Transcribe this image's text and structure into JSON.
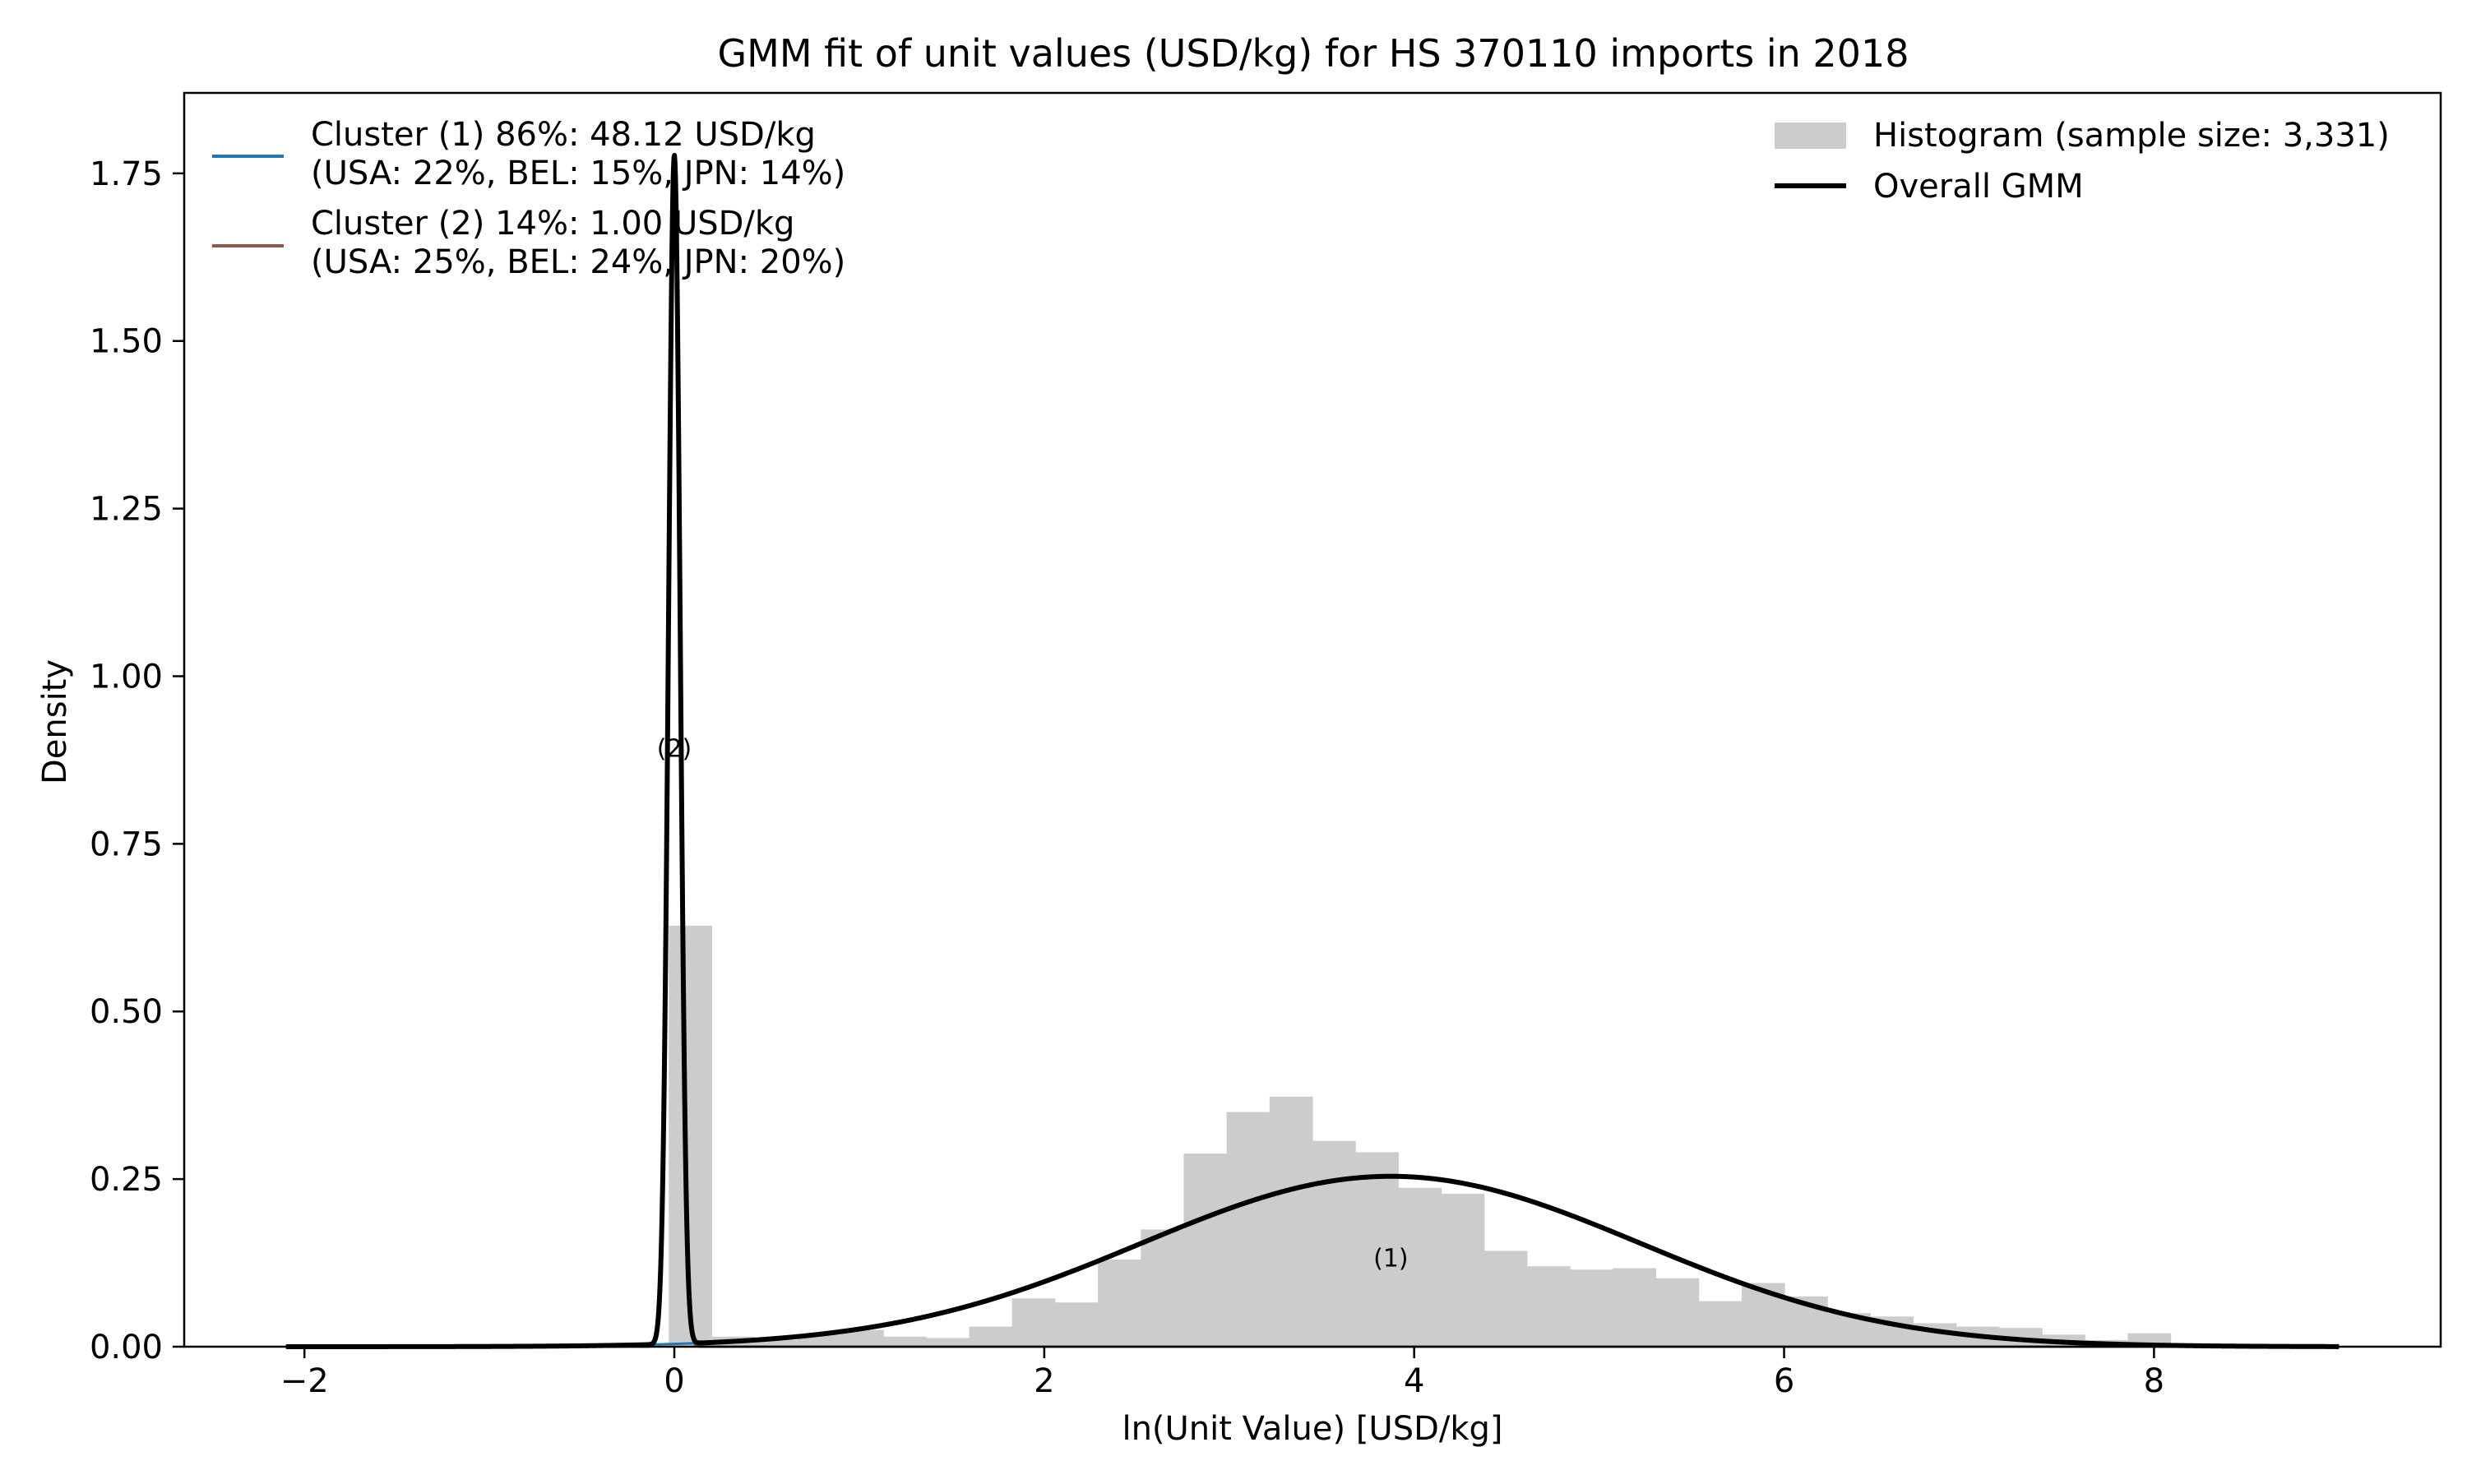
{
  "chart_data": {
    "type": "bar",
    "title": "GMM fit of unit values (USD/kg) for HS 370110 imports in 2018",
    "xlabel": "ln(Unit Value) [USD/kg]",
    "ylabel": "Density",
    "xlim": [
      -2.65,
      9.55
    ],
    "ylim": [
      0,
      1.87
    ],
    "x_ticks": [
      -2,
      0,
      2,
      4,
      6,
      8
    ],
    "x_tick_labels": [
      "−2",
      "0",
      "2",
      "4",
      "6",
      "8"
    ],
    "y_ticks": [
      0,
      0.25,
      0.5,
      0.75,
      1.0,
      1.25,
      1.5,
      1.75
    ],
    "y_tick_labels": [
      "0.00",
      "0.25",
      "0.50",
      "0.75",
      "1.00",
      "1.25",
      "1.50",
      "1.75"
    ],
    "grid": false,
    "histogram": {
      "label": "Histogram (sample size: 3,331)",
      "color": "#cccccc",
      "bin_width": 0.232,
      "bin_starts": [
        -0.03,
        0.202,
        0.434,
        0.666,
        0.898,
        1.13,
        1.362,
        1.594,
        1.826,
        2.058,
        2.29,
        2.522,
        2.754,
        2.986,
        3.218,
        3.45,
        3.682,
        3.914,
        4.146,
        4.378,
        4.61,
        4.842,
        5.074,
        5.306,
        5.538,
        5.77,
        6.002,
        6.234,
        6.466,
        6.698,
        6.93,
        7.162,
        7.394,
        7.626,
        7.858
      ],
      "values": [
        0.628,
        0.015,
        0.01,
        0.018,
        0.025,
        0.015,
        0.013,
        0.03,
        0.072,
        0.066,
        0.13,
        0.175,
        0.288,
        0.35,
        0.373,
        0.307,
        0.29,
        0.237,
        0.228,
        0.143,
        0.12,
        0.115,
        0.117,
        0.102,
        0.068,
        0.095,
        0.075,
        0.05,
        0.045,
        0.035,
        0.03,
        0.028,
        0.018,
        0.01,
        0.02
      ]
    },
    "gmm": {
      "x_range": [
        -2.1,
        9.0
      ],
      "components": [
        {
          "label_short": "(1)",
          "weight": 0.86,
          "mean": 3.874,
          "sd": 1.35,
          "label_x": 3.874,
          "label_y": 0.13
        },
        {
          "label_short": "(2)",
          "weight": 0.14,
          "mean": 0.0,
          "sd": 0.0315,
          "label_x": 0.0,
          "label_y": 0.89
        }
      ]
    },
    "series": [
      {
        "name": "Cluster (1) 86%: 48.12 USD/kg",
        "name_line2": "(USA: 22%, BEL: 15%, JPN: 14%)",
        "color": "#1f77b4",
        "kind": "component"
      },
      {
        "name": "Cluster (2) 14%: 1.00 USD/kg",
        "name_line2": "(USA: 25%, BEL: 24%, JPN: 20%)",
        "color": "#8c564b",
        "kind": "component"
      },
      {
        "name": "Overall GMM",
        "color": "#000000",
        "kind": "total"
      }
    ],
    "legend_left_placement": "upper-left",
    "legend_right_placement": "upper-right"
  }
}
